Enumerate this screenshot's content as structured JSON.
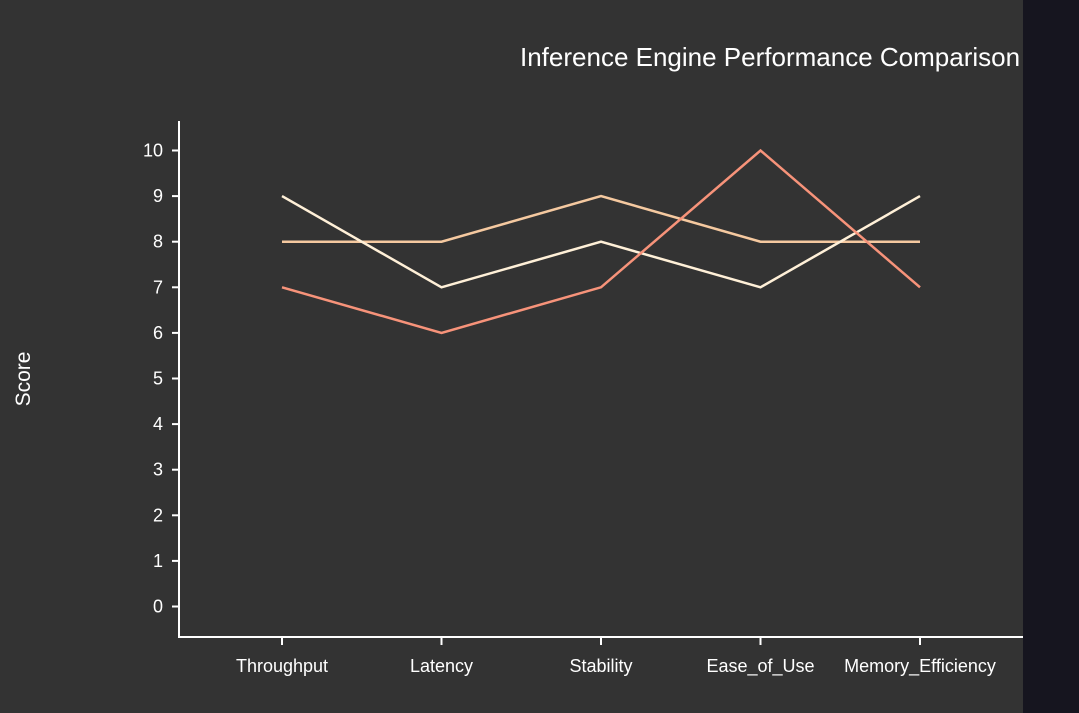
{
  "colors": {
    "page_background": "#16151f",
    "plot_background": "#333333",
    "axis": "#ffffff",
    "text": "#ffffff"
  },
  "chart_data": {
    "type": "line",
    "title": "Inference Engine Performance Comparison",
    "xlabel": "",
    "ylabel": "Score",
    "categories": [
      "Throughput",
      "Latency",
      "Stability",
      "Ease_of_Use",
      "Memory_Efficiency"
    ],
    "ylim": [
      -0.7,
      10.7
    ],
    "yticks": [
      0,
      1,
      2,
      3,
      4,
      5,
      6,
      7,
      8,
      9,
      10
    ],
    "grid": false,
    "legend": "none",
    "series": [
      {
        "values": [
          8,
          8,
          9,
          8,
          8
        ],
        "color": "#f5c9a0"
      },
      {
        "values": [
          9,
          7,
          8,
          7,
          9
        ],
        "color": "#fff0d8"
      },
      {
        "values": [
          7,
          6,
          7,
          10,
          7
        ],
        "color": "#f7937a"
      }
    ]
  }
}
